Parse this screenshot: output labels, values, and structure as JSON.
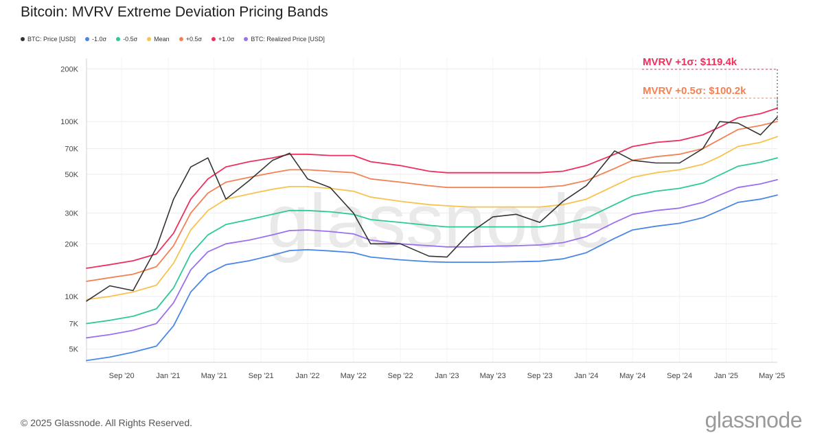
{
  "title": "Bitcoin: MVRV Extreme Deviation Pricing Bands",
  "footer": "© 2025 Glassnode. All Rights Reserved.",
  "brand": "glassnode",
  "watermark": "glassnode",
  "legend": [
    {
      "label": "BTC: Price [USD]",
      "color": "#333333"
    },
    {
      "label": "-1.0σ",
      "color": "#4a86e8"
    },
    {
      "label": "-0.5σ",
      "color": "#2bc99b"
    },
    {
      "label": "Mean",
      "color": "#f7c24d"
    },
    {
      "label": "+0.5σ",
      "color": "#f38154"
    },
    {
      "label": "+1.0σ",
      "color": "#ee2f5c"
    },
    {
      "label": "BTC: Realized Price [USD]",
      "color": "#9c6ef0"
    }
  ],
  "chart_data": {
    "type": "line",
    "title": "Bitcoin: MVRV Extreme Deviation Pricing Bands",
    "y_scale": "log",
    "ylim": [
      4200,
      230000
    ],
    "y_ticks": [
      {
        "value": 5000,
        "label": "5K"
      },
      {
        "value": 7000,
        "label": "7K"
      },
      {
        "value": 10000,
        "label": "10K"
      },
      {
        "value": 20000,
        "label": "20K"
      },
      {
        "value": 30000,
        "label": "30K"
      },
      {
        "value": 50000,
        "label": "50K"
      },
      {
        "value": 70000,
        "label": "70K"
      },
      {
        "value": 100000,
        "label": "100K"
      },
      {
        "value": 200000,
        "label": "200K"
      }
    ],
    "x_range": [
      "2020-06-01",
      "2025-05-15"
    ],
    "x_ticks": [
      {
        "date": "2020-09-01",
        "label": "Sep '20"
      },
      {
        "date": "2021-01-01",
        "label": "Jan '21"
      },
      {
        "date": "2021-05-01",
        "label": "May '21"
      },
      {
        "date": "2021-09-01",
        "label": "Sep '21"
      },
      {
        "date": "2022-01-01",
        "label": "Jan '22"
      },
      {
        "date": "2022-05-01",
        "label": "May '22"
      },
      {
        "date": "2022-09-01",
        "label": "Sep '22"
      },
      {
        "date": "2023-01-01",
        "label": "Jan '23"
      },
      {
        "date": "2023-05-01",
        "label": "May '23"
      },
      {
        "date": "2023-09-01",
        "label": "Sep '23"
      },
      {
        "date": "2024-01-01",
        "label": "Jan '24"
      },
      {
        "date": "2024-05-01",
        "label": "May '24"
      },
      {
        "date": "2024-09-01",
        "label": "Sep '24"
      },
      {
        "date": "2025-01-01",
        "label": "Jan '25"
      },
      {
        "date": "2025-05-01",
        "label": "May '25"
      }
    ],
    "grid": true,
    "legend_position": "top-left",
    "annotations": [
      {
        "text": "MVRV +1σ: $119.4k",
        "value": 119400,
        "color": "#ee2f5c"
      },
      {
        "text": "MVRV +0.5σ: $100.2k",
        "value": 100200,
        "color": "#f38154"
      }
    ],
    "x": [
      "2020-06-01",
      "2020-08-01",
      "2020-10-01",
      "2020-12-01",
      "2021-01-15",
      "2021-03-01",
      "2021-04-15",
      "2021-06-01",
      "2021-08-01",
      "2021-10-01",
      "2021-11-15",
      "2022-01-01",
      "2022-03-01",
      "2022-05-01",
      "2022-06-15",
      "2022-09-01",
      "2022-11-15",
      "2023-01-01",
      "2023-03-01",
      "2023-05-01",
      "2023-07-01",
      "2023-09-01",
      "2023-11-01",
      "2024-01-01",
      "2024-03-15",
      "2024-05-01",
      "2024-07-01",
      "2024-09-01",
      "2024-11-01",
      "2024-12-15",
      "2025-02-01",
      "2025-04-01",
      "2025-05-15"
    ],
    "series": [
      {
        "name": "+1.0σ",
        "color": "#ee2f5c",
        "values": [
          14500,
          15200,
          16000,
          17500,
          23000,
          36000,
          47000,
          55000,
          59000,
          62000,
          65000,
          65000,
          64000,
          64000,
          59000,
          56000,
          52000,
          51000,
          51000,
          51000,
          51000,
          51000,
          52000,
          56000,
          65000,
          72000,
          76000,
          78000,
          84000,
          93000,
          105000,
          111000,
          119400
        ]
      },
      {
        "name": "+0.5σ",
        "color": "#f38154",
        "values": [
          12200,
          12800,
          13400,
          14800,
          19500,
          30000,
          39000,
          45000,
          48000,
          51000,
          53000,
          53000,
          52000,
          51000,
          47000,
          45000,
          43000,
          42000,
          42000,
          42000,
          42000,
          42000,
          43000,
          46000,
          54000,
          60000,
          63000,
          65000,
          70000,
          79000,
          90000,
          95000,
          100200
        ]
      },
      {
        "name": "Mean",
        "color": "#f7c24d",
        "values": [
          9600,
          10000,
          10600,
          11600,
          15500,
          24000,
          31000,
          36000,
          38500,
          41000,
          42500,
          42500,
          41500,
          40000,
          37000,
          35000,
          33500,
          33000,
          32500,
          32500,
          32500,
          32500,
          33500,
          36000,
          43000,
          48000,
          51000,
          53000,
          57000,
          63000,
          72000,
          76000,
          82000
        ]
      },
      {
        "name": "-0.5σ",
        "color": "#2bc99b",
        "values": [
          7000,
          7300,
          7700,
          8500,
          11200,
          17500,
          22500,
          25800,
          27500,
          29500,
          31000,
          31000,
          30500,
          29500,
          27500,
          26500,
          25500,
          25000,
          25000,
          25000,
          25000,
          25000,
          26000,
          28000,
          33500,
          37500,
          40000,
          41500,
          44500,
          49500,
          55500,
          58500,
          62000
        ]
      },
      {
        "name": "BTC: Realized Price [USD]",
        "color": "#9c6ef0",
        "values": [
          5800,
          6050,
          6400,
          7000,
          9200,
          14200,
          18000,
          20000,
          21000,
          22500,
          23800,
          24000,
          23500,
          22800,
          21000,
          20000,
          19500,
          19200,
          19200,
          19400,
          19500,
          19700,
          20300,
          22000,
          26500,
          29500,
          31000,
          32000,
          34500,
          38000,
          42000,
          44000,
          46500
        ]
      },
      {
        "name": "-1.0σ",
        "color": "#4a86e8",
        "values": [
          4300,
          4500,
          4800,
          5200,
          6800,
          10600,
          13500,
          15200,
          16000,
          17200,
          18300,
          18500,
          18200,
          17800,
          16800,
          16200,
          15800,
          15700,
          15700,
          15700,
          15800,
          15900,
          16400,
          17800,
          21500,
          24000,
          25200,
          26200,
          28200,
          31000,
          34500,
          36000,
          38000
        ]
      },
      {
        "name": "BTC: Price [USD]",
        "color": "#333333",
        "values": [
          9400,
          11500,
          10800,
          19000,
          36000,
          55000,
          62000,
          36000,
          46000,
          60000,
          66000,
          47000,
          42000,
          30000,
          20000,
          20000,
          17000,
          16800,
          23000,
          28500,
          29500,
          26500,
          35000,
          43000,
          68000,
          60000,
          58000,
          58000,
          70000,
          100000,
          98000,
          84000,
          106000
        ]
      }
    ]
  }
}
